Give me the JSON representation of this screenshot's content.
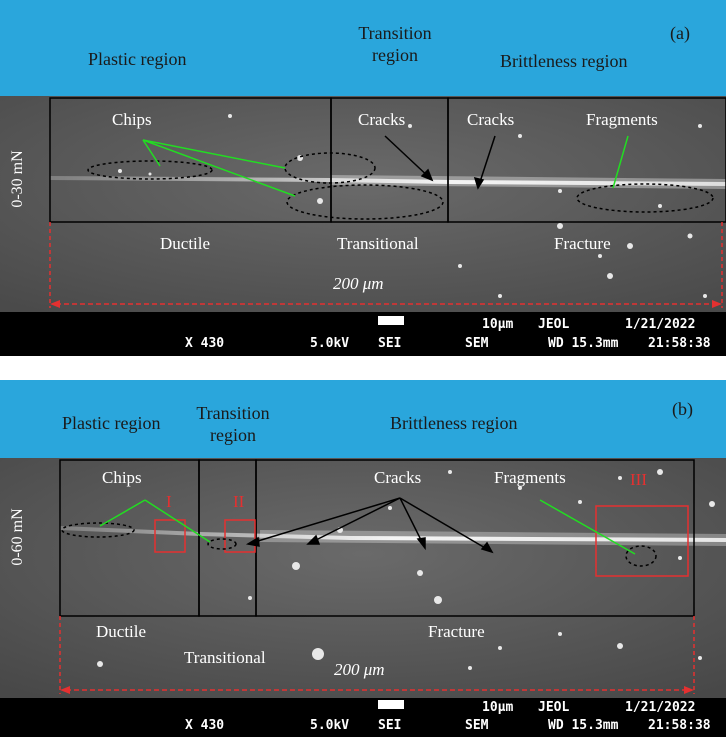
{
  "panel_a": {
    "label": "(a)",
    "load": "0-30 mN",
    "regions": {
      "plastic": "Plastic region",
      "transition": "Transition\nregion",
      "brittle": "Brittleness region"
    },
    "annotations": {
      "chips": "Chips",
      "cracks1": "Cracks",
      "cracks2": "Cracks",
      "fragments": "Fragments"
    },
    "modes": {
      "ductile": "Ductile",
      "transitional": "Transitional",
      "fracture": "Fracture"
    },
    "scale": "200 μm",
    "info": {
      "magnification": "X 430",
      "voltage": "5.0kV",
      "detector": "SEI",
      "scalebar": "10μm",
      "maker": "JEOL",
      "type": "SEM",
      "wd": "WD 15.3mm",
      "date": "1/21/2022",
      "time": "21:58:38"
    }
  },
  "panel_b": {
    "label": "(b)",
    "load": "0-60 mN",
    "regions": {
      "plastic": "Plastic region",
      "transition": "Transition\nregion",
      "brittle": "Brittleness region"
    },
    "annotations": {
      "chips": "Chips",
      "cracks": "Cracks",
      "fragments": "Fragments"
    },
    "markers": {
      "m1": "I",
      "m2": "II",
      "m3": "III"
    },
    "modes": {
      "ductile": "Ductile",
      "transitional": "Transitional",
      "fracture": "Fracture"
    },
    "scale": "200 μm",
    "info": {
      "magnification": "X 430",
      "voltage": "5.0kV",
      "detector": "SEI",
      "scalebar": "10μm",
      "maker": "JEOL",
      "type": "SEM",
      "wd": "WD 15.3mm",
      "date": "1/21/2022",
      "time": "21:58:38"
    }
  },
  "colors": {
    "header": "#2aa6dc",
    "sem_background": "#5a5a5a",
    "pointer_green": "#22dd22",
    "marker_red": "#e53030"
  }
}
